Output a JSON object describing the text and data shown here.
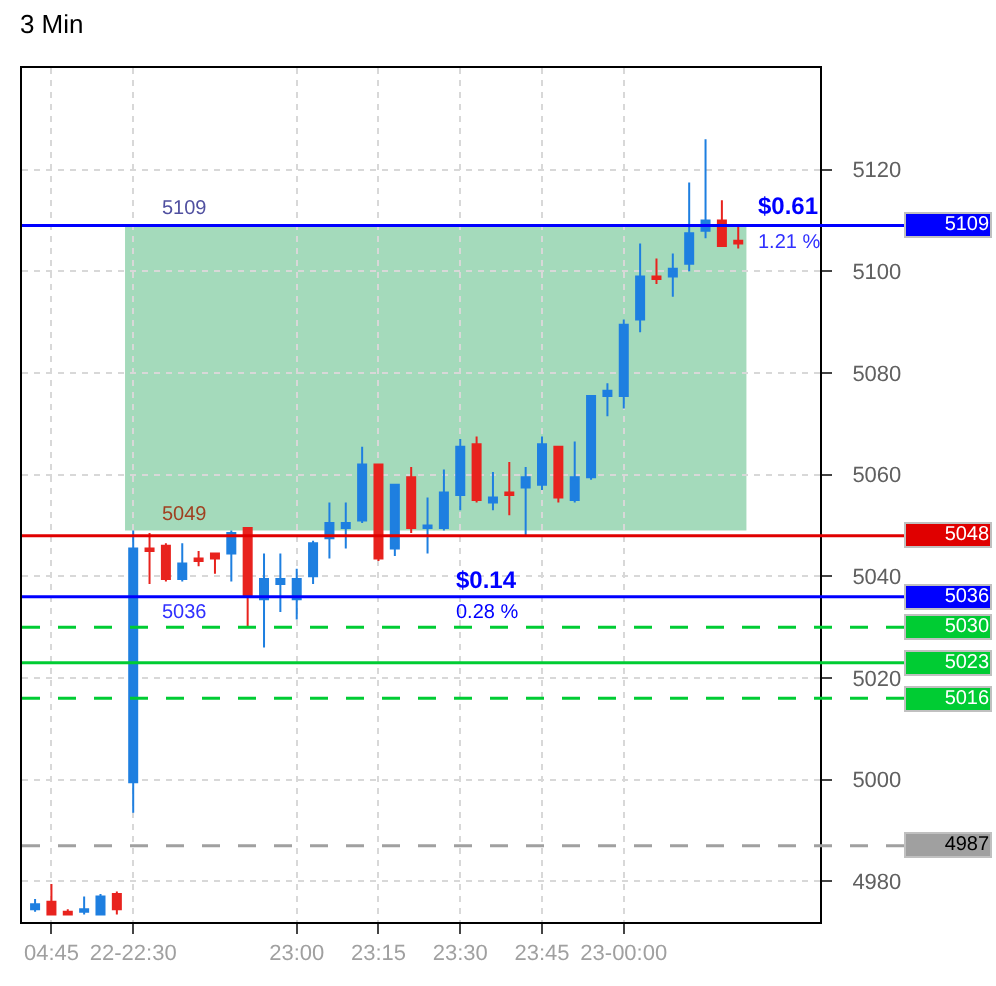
{
  "chart_data": {
    "type": "candlestick",
    "title": "3 Min",
    "categories": [
      null,
      "04:45",
      null,
      null,
      null,
      null,
      "22-22:30",
      null,
      null,
      null,
      null,
      null,
      null,
      null,
      null,
      null,
      "23:00",
      null,
      null,
      null,
      null,
      "23:15",
      null,
      null,
      null,
      null,
      "23:30",
      null,
      null,
      null,
      null,
      "23:45",
      null,
      null,
      null,
      null,
      "23-00:00",
      null,
      null,
      null,
      null,
      null,
      null,
      null
    ],
    "ohlc": [
      [
        4974.5,
        4976.5,
        4974,
        4975.5
      ],
      [
        4976,
        4979.5,
        4973.5,
        4973.5
      ],
      [
        4974,
        4974.5,
        4973.5,
        4973.5
      ],
      [
        4974,
        4977,
        4973.5,
        4974.5
      ],
      [
        4973.5,
        4977.5,
        4973.5,
        4977
      ],
      [
        4977.5,
        4978,
        4973.5,
        4974.5
      ],
      [
        4999.5,
        5049,
        4993.5,
        5045.5
      ],
      [
        5045.5,
        5048.5,
        5038.5,
        5045
      ],
      [
        5046,
        5046.5,
        5039,
        5039.5
      ],
      [
        5039.5,
        5046.5,
        5039,
        5042.5
      ],
      [
        5043.5,
        5045,
        5042,
        5043
      ],
      [
        5044.5,
        5044.5,
        5040.5,
        5043.5
      ],
      [
        5044.5,
        5049,
        5039,
        5048.5
      ],
      [
        5049.5,
        5049.5,
        5030,
        5036
      ],
      [
        5035.5,
        5044.5,
        5026,
        5039.5
      ],
      [
        5038.5,
        5044.5,
        5033,
        5039.5
      ],
      [
        5035.5,
        5041.5,
        5031.5,
        5039.5
      ],
      [
        5040,
        5047,
        5038.5,
        5046.5
      ],
      [
        5047.5,
        5054.5,
        5043.5,
        5050.5
      ],
      [
        5049.5,
        5054.5,
        5045.5,
        5050.5
      ],
      [
        5051,
        5065.5,
        5050.5,
        5062
      ],
      [
        5062,
        5062,
        5043,
        5043.5
      ],
      [
        5045.5,
        5058,
        5044,
        5058
      ],
      [
        5059.5,
        5061.5,
        5048.5,
        5049.5
      ],
      [
        5049.5,
        5055.5,
        5044.5,
        5050
      ],
      [
        5049.5,
        5061,
        5049,
        5056.5
      ],
      [
        5056,
        5067,
        5053,
        5065.5
      ],
      [
        5066,
        5067.5,
        5054.5,
        5055
      ],
      [
        5054.5,
        5060.5,
        5053,
        5055.5
      ],
      [
        5056.5,
        5062.5,
        5052,
        5056
      ],
      [
        5057.5,
        5061.5,
        5048,
        5059.5
      ],
      [
        5058,
        5067.5,
        5057,
        5066
      ],
      [
        5065.5,
        5065.5,
        5054.5,
        5055.5
      ],
      [
        5055,
        5066.5,
        5054.5,
        5059.5
      ],
      [
        5059.5,
        5075.5,
        5059,
        5075.5
      ],
      [
        5075.5,
        5078,
        5071.5,
        5076.5
      ],
      [
        5075.5,
        5090.5,
        5073,
        5089.5
      ],
      [
        5090.5,
        5105.5,
        5088,
        5099
      ],
      [
        5099,
        5102.5,
        5097.5,
        5098.5
      ],
      [
        5099,
        5103.5,
        5095,
        5100.5
      ],
      [
        5101.5,
        5117.5,
        5100,
        5107.5
      ],
      [
        5108,
        5126,
        5106.5,
        5110
      ],
      [
        5110,
        5114,
        5105,
        5105
      ],
      [
        5106,
        5109,
        5104.5,
        5105.5
      ]
    ],
    "colors": [
      "#1e7fe0",
      "#e8231e",
      "#e8231e",
      "#1e7fe0",
      "#1e7fe0",
      "#e8231e",
      "#1e7fe0",
      "#e8231e",
      "#e8231e",
      "#1e7fe0",
      "#e8231e",
      "#e8231e",
      "#1e7fe0",
      "#e8231e",
      "#1e7fe0",
      "#1e7fe0",
      "#1e7fe0",
      "#1e7fe0",
      "#1e7fe0",
      "#1e7fe0",
      "#1e7fe0",
      "#e8231e",
      "#1e7fe0",
      "#e8231e",
      "#1e7fe0",
      "#1e7fe0",
      "#1e7fe0",
      "#e8231e",
      "#1e7fe0",
      "#e8231e",
      "#1e7fe0",
      "#1e7fe0",
      "#e8231e",
      "#1e7fe0",
      "#1e7fe0",
      "#1e7fe0",
      "#1e7fe0",
      "#1e7fe0",
      "#e8231e",
      "#1e7fe0",
      "#1e7fe0",
      "#1e7fe0",
      "#e8231e",
      "#e8231e"
    ],
    "ylim": [
      4972,
      5140
    ],
    "yticks": [
      4980,
      5000,
      5020,
      5040,
      5060,
      5080,
      5100,
      5120
    ],
    "grid": true,
    "bands": [
      {
        "axis": "y",
        "from": 5049,
        "to": 5109,
        "color": "#9ad6b4"
      }
    ],
    "ref_lines": [
      {
        "axis": "y",
        "value": 5109,
        "label": "5109",
        "color": "#0000ff",
        "line_style": "solid"
      },
      {
        "axis": "y",
        "value": 5048,
        "label": "5048",
        "color": "#e00000",
        "line_style": "solid"
      },
      {
        "axis": "y",
        "value": 5036,
        "label": "5036",
        "color": "#0000ff",
        "line_style": "solid"
      },
      {
        "axis": "y",
        "value": 5030,
        "label": "5030",
        "color": "#00cc33",
        "line_style": "dashed"
      },
      {
        "axis": "y",
        "value": 5023,
        "label": "5023",
        "color": "#00cc33",
        "line_style": "solid"
      },
      {
        "axis": "y",
        "value": 5016,
        "label": "5016",
        "color": "#00cc33",
        "line_style": "dashed"
      },
      {
        "axis": "y",
        "value": 4987,
        "label": "4987",
        "color": "#a0a0a0",
        "line_style": "dashed"
      }
    ],
    "annotations": [
      {
        "text": "5109",
        "y": 5109
      },
      {
        "text": "5049",
        "y": 5049
      },
      {
        "text": "5036",
        "y": 5036
      },
      {
        "text": "$0.14",
        "y": 5036
      },
      {
        "text": "0.28 %",
        "y": 5036
      },
      {
        "text": "$0.61",
        "y": 5109
      },
      {
        "text": "1.21 %",
        "y": 5109
      }
    ]
  }
}
